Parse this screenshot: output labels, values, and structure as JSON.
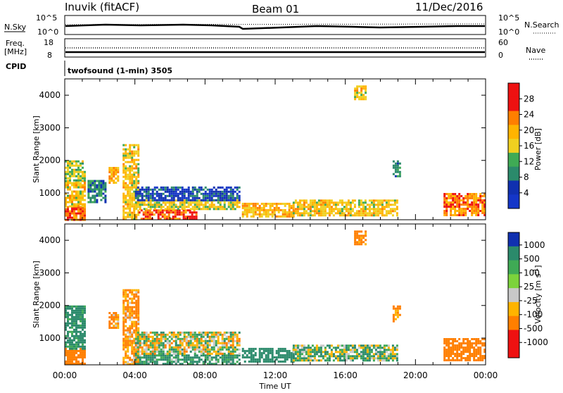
{
  "header": {
    "station": "Inuvik (fitACF)",
    "beam": "Beam 01",
    "date": "11/Dec/2016"
  },
  "summary_panels": {
    "nsky_label": "N.Sky",
    "nsky_ticks": [
      "10^5",
      "10^0"
    ],
    "nsearch_label": "N.Search",
    "nsearch_ticks": [
      "10^5",
      "10^0"
    ],
    "freq_label_1": "Freq.",
    "freq_label_2": "[MHz]",
    "freq_ticks": [
      "18",
      "8"
    ],
    "nave_label": "Nave",
    "nave_ticks": [
      "60",
      "0"
    ],
    "cpid_label": "CPID",
    "cpid_text": "twofsound (1-min) 3505"
  },
  "colors": {
    "red": "#ee1111",
    "orange": "#ff7f00",
    "yellow_orange": "#ffb400",
    "yellow": "#f0d020",
    "lightgreen": "#7cd33c",
    "green": "#3faa55",
    "teal": "#2b8a6b",
    "darkgreen": "#2a7a3a",
    "blue": "#1436c8",
    "darkblue": "#1030b0",
    "grey": "#c8c8c8"
  },
  "chart_data": [
    {
      "type": "heatmap",
      "title": "Power",
      "xlabel": "Time UT",
      "ylabel": "Slant Range [km]",
      "x_ticks": [
        "00:00",
        "04:00",
        "08:00",
        "12:00",
        "16:00",
        "20:00",
        "00:00"
      ],
      "y_ticks": [
        1000,
        2000,
        3000,
        4000
      ],
      "xlim_hours": [
        0,
        24
      ],
      "ylim_km": [
        180,
        4500
      ],
      "colorbar_label": "Power [dB]",
      "colorbar_ticks": [
        "4",
        "8",
        "12",
        "16",
        "20",
        "24",
        "28"
      ],
      "colorbar_range": [
        0,
        32
      ],
      "regions": [
        {
          "t0": 0.0,
          "t1": 1.2,
          "r0": 200,
          "r1": 600,
          "value": 28
        },
        {
          "t0": 0.0,
          "t1": 1.2,
          "r0": 600,
          "r1": 1400,
          "value": 20
        },
        {
          "t0": 0.0,
          "t1": 1.2,
          "r0": 1400,
          "r1": 2000,
          "value": 16
        },
        {
          "t0": 1.3,
          "t1": 2.3,
          "r0": 700,
          "r1": 1400,
          "value": 10
        },
        {
          "t0": 2.5,
          "t1": 3.0,
          "r0": 1300,
          "r1": 1800,
          "value": 22
        },
        {
          "t0": 3.3,
          "t1": 4.2,
          "r0": 200,
          "r1": 2500,
          "value": 20
        },
        {
          "t0": 4.2,
          "t1": 7.5,
          "r0": 200,
          "r1": 500,
          "value": 28
        },
        {
          "t0": 4.0,
          "t1": 9.9,
          "r0": 500,
          "r1": 800,
          "value": 18
        },
        {
          "t0": 4.0,
          "t1": 9.9,
          "r0": 800,
          "r1": 1200,
          "value": 6
        },
        {
          "t0": 10.1,
          "t1": 13.0,
          "r0": 300,
          "r1": 700,
          "value": 22
        },
        {
          "t0": 13.0,
          "t1": 18.9,
          "r0": 300,
          "r1": 800,
          "value": 20
        },
        {
          "t0": 16.5,
          "t1": 17.2,
          "r0": 3900,
          "r1": 4300,
          "value": 20
        },
        {
          "t0": 18.7,
          "t1": 19.1,
          "r0": 1500,
          "r1": 2000,
          "value": 10
        },
        {
          "t0": 21.6,
          "t1": 24.0,
          "r0": 300,
          "r1": 1000,
          "value": 26
        }
      ]
    },
    {
      "type": "heatmap",
      "title": "Velocity",
      "xlabel": "Time UT",
      "ylabel": "Slant Range [km]",
      "x_ticks": [
        "00:00",
        "04:00",
        "08:00",
        "12:00",
        "16:00",
        "20:00",
        "00:00"
      ],
      "y_ticks": [
        1000,
        2000,
        3000,
        4000
      ],
      "xlim_hours": [
        0,
        24
      ],
      "ylim_km": [
        180,
        4500
      ],
      "colorbar_label": "Velocity [m s^-1]",
      "colorbar_ticks": [
        "1000",
        "500",
        "100",
        "25",
        "-25",
        "-100",
        "-500",
        "-1000"
      ],
      "regions": [
        {
          "t0": 0.0,
          "t1": 1.2,
          "r0": 200,
          "r1": 700,
          "value": -300
        },
        {
          "t0": 0.0,
          "t1": 1.2,
          "r0": 700,
          "r1": 2000,
          "value": 200
        },
        {
          "t0": 2.5,
          "t1": 3.0,
          "r0": 1300,
          "r1": 1800,
          "value": -150
        },
        {
          "t0": 3.3,
          "t1": 4.2,
          "r0": 200,
          "r1": 2500,
          "value": -150
        },
        {
          "t0": 4.0,
          "t1": 10.0,
          "r0": 200,
          "r1": 500,
          "value": 150
        },
        {
          "t0": 4.0,
          "t1": 10.0,
          "r0": 500,
          "r1": 1200,
          "value": 0
        },
        {
          "t0": 10.1,
          "t1": 13.0,
          "r0": 300,
          "r1": 700,
          "value": 300
        },
        {
          "t0": 13.0,
          "t1": 18.9,
          "r0": 300,
          "r1": 800,
          "value": 60
        },
        {
          "t0": 16.5,
          "t1": 17.2,
          "r0": 3900,
          "r1": 4300,
          "value": -200
        },
        {
          "t0": 18.7,
          "t1": 19.1,
          "r0": 1500,
          "r1": 2000,
          "value": -200
        },
        {
          "t0": 21.6,
          "t1": 24.0,
          "r0": 300,
          "r1": 1000,
          "value": -250
        }
      ]
    }
  ]
}
